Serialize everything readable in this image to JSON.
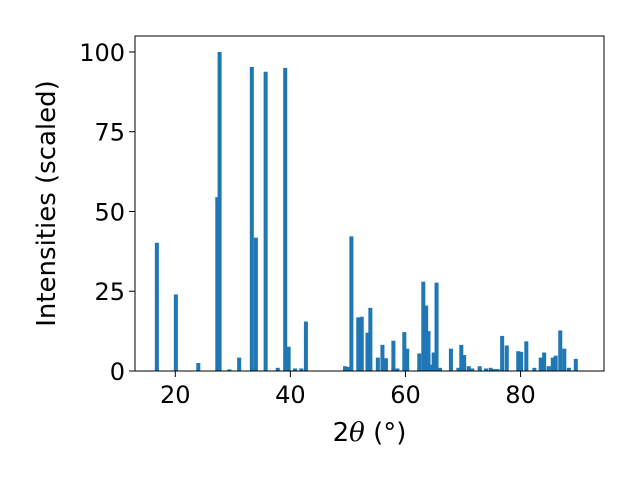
{
  "chart_data": {
    "type": "bar",
    "xlabel_prefix": "2",
    "xlabel_symbol": "θ",
    "xlabel_suffix": " (°)",
    "ylabel": "Intensities (scaled)",
    "xlim": [
      13,
      94.5
    ],
    "ylim": [
      0,
      105
    ],
    "xticks": [
      20,
      40,
      60,
      80
    ],
    "yticks": [
      0,
      25,
      50,
      75,
      100
    ],
    "grid": false,
    "bar_color": "#1f77b4",
    "bar_width": 0.7,
    "x": [
      16.8,
      20.1,
      24.0,
      27.3,
      27.7,
      29.4,
      31.1,
      33.3,
      34.0,
      35.7,
      37.8,
      39.1,
      39.7,
      40.8,
      41.9,
      42.7,
      49.5,
      50.1,
      50.6,
      51.8,
      52.4,
      53.4,
      53.9,
      55.2,
      56.0,
      56.6,
      57.9,
      58.6,
      59.8,
      60.3,
      62.4,
      63.1,
      63.6,
      64.0,
      64.3,
      64.9,
      65.4,
      66.0,
      67.9,
      69.2,
      69.7,
      70.2,
      71.0,
      71.6,
      72.9,
      74.0,
      74.8,
      75.3,
      76.0,
      76.8,
      77.6,
      79.6,
      80.1,
      81.0,
      82.4,
      83.5,
      84.1,
      84.9,
      85.6,
      86.1,
      86.9,
      87.6,
      88.4,
      89.6
    ],
    "values": [
      40.2,
      24.0,
      2.5,
      54.5,
      100.0,
      0.5,
      4.2,
      95.3,
      41.8,
      93.8,
      1.0,
      95.0,
      7.6,
      0.8,
      0.8,
      15.5,
      1.5,
      1.3,
      42.2,
      16.8,
      17.0,
      12.0,
      19.8,
      4.2,
      8.2,
      4.0,
      9.5,
      0.8,
      12.2,
      7.0,
      5.5,
      28.0,
      20.5,
      12.5,
      2.0,
      5.8,
      27.7,
      1.0,
      7.0,
      1.0,
      8.2,
      5.0,
      1.5,
      0.8,
      1.5,
      0.8,
      1.0,
      0.6,
      0.6,
      11.0,
      8.0,
      6.2,
      6.0,
      9.3,
      1.0,
      4.2,
      5.8,
      1.5,
      4.2,
      4.8,
      12.7,
      7.0,
      1.0,
      3.8
    ]
  }
}
